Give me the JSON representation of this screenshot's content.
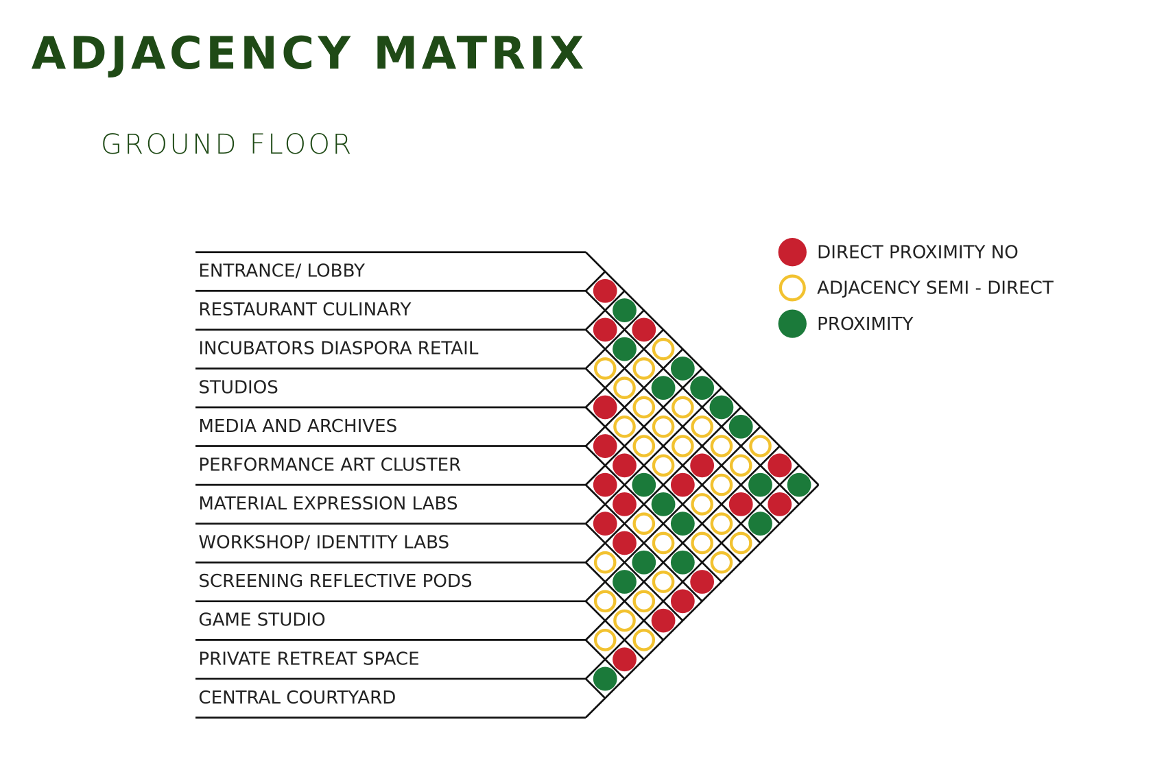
{
  "header": {
    "title": "ADJACENCY MATRIX",
    "subtitle": "GROUND FLOOR"
  },
  "legend": [
    {
      "label": "DIRECT PROXIMITY NO",
      "color": "#c8202f",
      "style": "filled"
    },
    {
      "label": "ADJACENCY SEMI - DIRECT",
      "color": "#f2c230",
      "style": "ring"
    },
    {
      "label": "PROXIMITY",
      "color": "#1b7a3a",
      "style": "filled"
    }
  ],
  "rows": [
    "ENTRANCE/ LOBBY",
    "RESTAURANT CULINARY",
    "INCUBATORS DIASPORA RETAIL",
    "STUDIOS",
    "MEDIA AND ARCHIVES",
    "PERFORMANCE ART CLUSTER",
    "MATERIAL EXPRESSION LABS",
    "WORKSHOP/ IDENTITY LABS",
    "SCREENING REFLECTIVE PODS",
    "GAME STUDIO",
    "PRIVATE RETREAT SPACE",
    "CENTRAL COURTYARD"
  ],
  "matrix": [
    [
      0,
      2,
      0,
      1,
      2,
      2,
      2,
      2,
      1,
      0,
      2
    ],
    [
      0,
      2,
      1,
      2,
      1,
      1,
      1,
      1,
      2,
      0
    ],
    [
      1,
      1,
      1,
      1,
      1,
      0,
      1,
      0,
      2
    ],
    [
      0,
      1,
      1,
      1,
      0,
      1,
      1,
      1
    ],
    [
      0,
      0,
      2,
      2,
      2,
      1,
      1
    ],
    [
      0,
      0,
      1,
      1,
      2,
      0
    ],
    [
      0,
      0,
      2,
      1,
      0
    ],
    [
      1,
      2,
      1,
      0
    ],
    [
      1,
      1,
      1
    ],
    [
      1,
      0
    ],
    [
      2
    ]
  ]
}
